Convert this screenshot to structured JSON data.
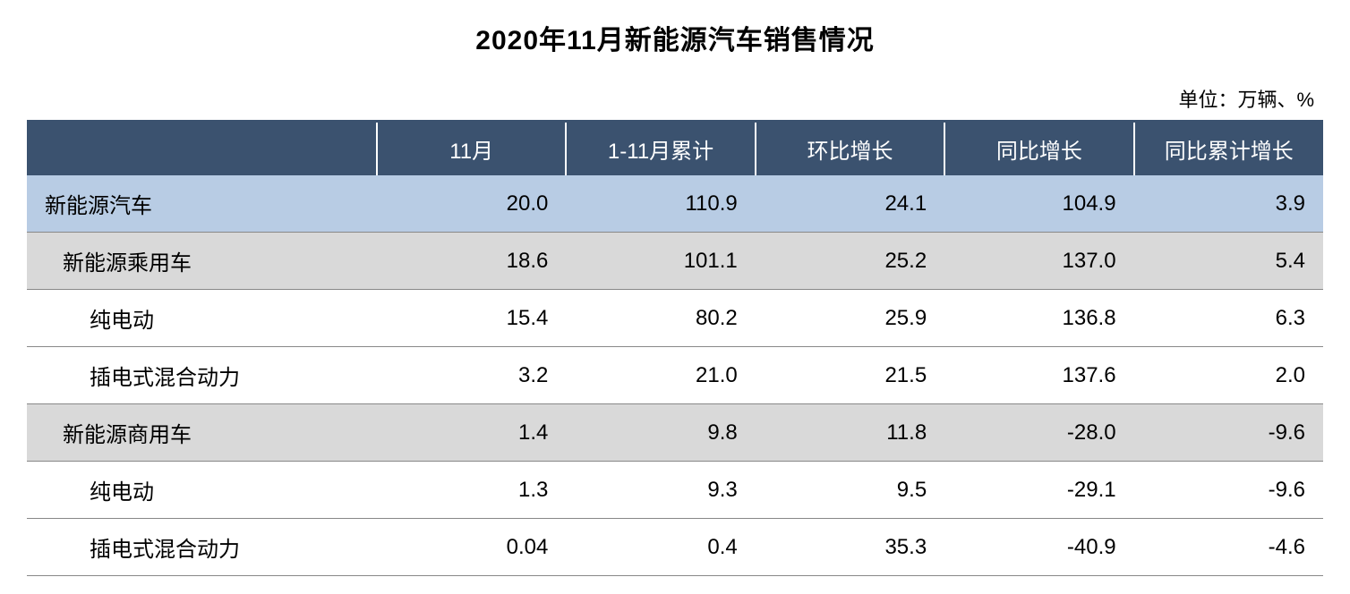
{
  "title": "2020年11月新能源汽车销售情况",
  "unit_label": "单位：万辆、%",
  "columns": {
    "c0": "",
    "c1": "11月",
    "c2": "1-11月累计",
    "c3": "环比增长",
    "c4": "同比增长",
    "c5": "同比累计增长"
  },
  "rows": [
    {
      "label": "新能源汽车",
      "indent": 0,
      "style": "highlight-blue",
      "v1": "20.0",
      "v2": "110.9",
      "v3": "24.1",
      "v4": "104.9",
      "v5": "3.9"
    },
    {
      "label": "新能源乘用车",
      "indent": 1,
      "style": "highlight-gray",
      "v1": "18.6",
      "v2": "101.1",
      "v3": "25.2",
      "v4": "137.0",
      "v5": "5.4"
    },
    {
      "label": "纯电动",
      "indent": 2,
      "style": "normal",
      "v1": "15.4",
      "v2": "80.2",
      "v3": "25.9",
      "v4": "136.8",
      "v5": "6.3"
    },
    {
      "label": "插电式混合动力",
      "indent": 2,
      "style": "normal",
      "v1": "3.2",
      "v2": "21.0",
      "v3": "21.5",
      "v4": "137.6",
      "v5": "2.0"
    },
    {
      "label": "新能源商用车",
      "indent": 1,
      "style": "highlight-gray",
      "v1": "1.4",
      "v2": "9.8",
      "v3": "11.8",
      "v4": "-28.0",
      "v5": "-9.6"
    },
    {
      "label": "纯电动",
      "indent": 2,
      "style": "normal",
      "v1": "1.3",
      "v2": "9.3",
      "v3": "9.5",
      "v4": "-29.1",
      "v5": "-9.6"
    },
    {
      "label": "插电式混合动力",
      "indent": 2,
      "style": "normal",
      "v1": "0.04",
      "v2": "0.4",
      "v3": "35.3",
      "v4": "-40.9",
      "v5": "-4.6"
    }
  ],
  "styling": {
    "header_bg": "#3b526f",
    "header_text": "#ffffff",
    "highlight_blue_bg": "#b8cce4",
    "highlight_gray_bg": "#d9d9d9",
    "normal_bg": "#ffffff",
    "border_color": "#888888",
    "title_fontsize": 30,
    "cell_fontsize": 24,
    "unit_fontsize": 22
  }
}
